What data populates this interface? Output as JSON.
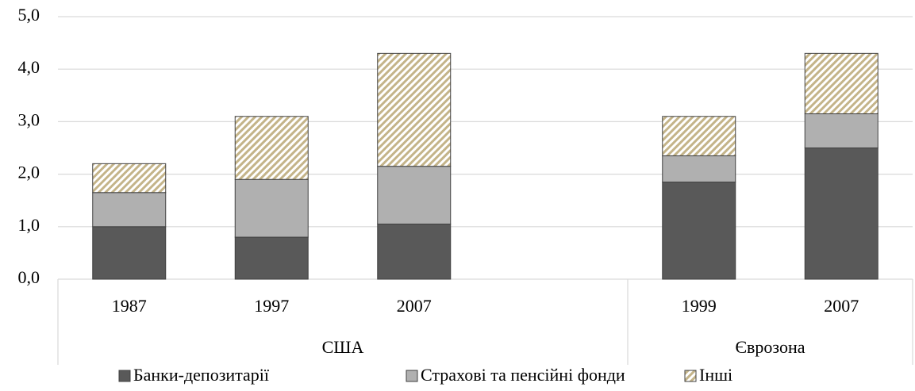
{
  "chart_data": {
    "type": "stacked-bar",
    "categories": [
      "1987",
      "1997",
      "2007",
      null,
      "1999",
      "2007"
    ],
    "groups": [
      {
        "label": "США",
        "count": 4
      },
      {
        "label": "Єврозона",
        "count": 2
      }
    ],
    "series": [
      {
        "name": "Банки-депозитарії",
        "color": "#595959",
        "values": [
          1.0,
          0.8,
          1.05,
          null,
          1.85,
          2.5
        ]
      },
      {
        "name": "Страхові та пенсійні фонди",
        "color": "#b0b0b0",
        "values": [
          0.65,
          1.1,
          1.1,
          null,
          0.5,
          0.65
        ]
      },
      {
        "name": "Інші",
        "color": "#c4b489",
        "pattern": "hatch",
        "values": [
          0.55,
          1.2,
          2.15,
          null,
          0.75,
          1.15
        ]
      }
    ],
    "ylim": [
      0,
      5
    ],
    "yticks": [
      {
        "value": 0,
        "label": "0,0"
      },
      {
        "value": 1,
        "label": "1,0"
      },
      {
        "value": 2,
        "label": "2,0"
      },
      {
        "value": 3,
        "label": "3,0"
      },
      {
        "value": 4,
        "label": "4,0"
      },
      {
        "value": 5,
        "label": "5,0"
      }
    ],
    "grid": true,
    "legend": "bottom"
  }
}
